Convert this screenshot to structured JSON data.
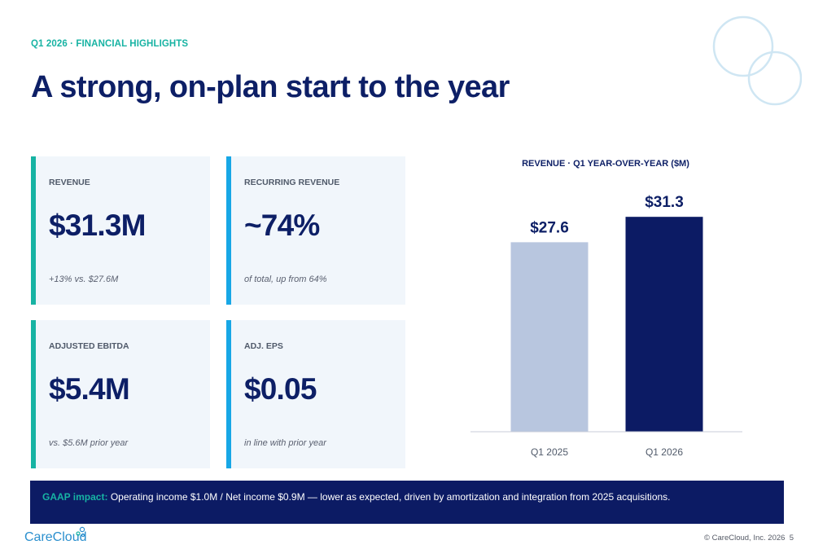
{
  "header": {
    "kicker": "Q1 2026 · FINANCIAL HIGHLIGHTS",
    "title": "A strong, on-plan start to the year"
  },
  "cards": [
    {
      "label": "REVENUE",
      "value": "$31.3M",
      "note": "+13% vs. $27.6M",
      "accent": "#17b3a3"
    },
    {
      "label": "RECURRING REVENUE",
      "value": "~74%",
      "note": "of total, up from 64%",
      "accent": "#17a7e6"
    },
    {
      "label": "ADJUSTED EBITDA",
      "value": "$5.4M",
      "note": "vs. $5.6M prior year",
      "accent": "#17b3a3"
    },
    {
      "label": "ADJ. EPS",
      "value": "$0.05",
      "note": "in line with prior year",
      "accent": "#17a7e6"
    }
  ],
  "chart_data": {
    "type": "bar",
    "title": "REVENUE · Q1 YEAR-OVER-YEAR ($M)",
    "categories": [
      "Q1 2025",
      "Q1 2026"
    ],
    "values": [
      27.6,
      31.3
    ],
    "data_labels": [
      "$27.6",
      "$31.3"
    ],
    "colors": [
      "#b8c6df",
      "#0c1b64"
    ],
    "ylim": [
      0,
      35
    ],
    "grid": false,
    "legend": "none"
  },
  "gaap": {
    "label": "GAAP impact:",
    "text": "Operating income $1.0M / Net income $0.9M — lower as expected, driven by amortization and integration from 2025 acquisitions."
  },
  "footer": {
    "logo_text": "CareCloud",
    "copyright": "© CareCloud, Inc. 2026",
    "page": "5"
  },
  "colors": {
    "navy": "#0c1b64",
    "teal": "#17b3a3",
    "blue": "#17a7e6",
    "card_bg": "#f1f6fb"
  }
}
